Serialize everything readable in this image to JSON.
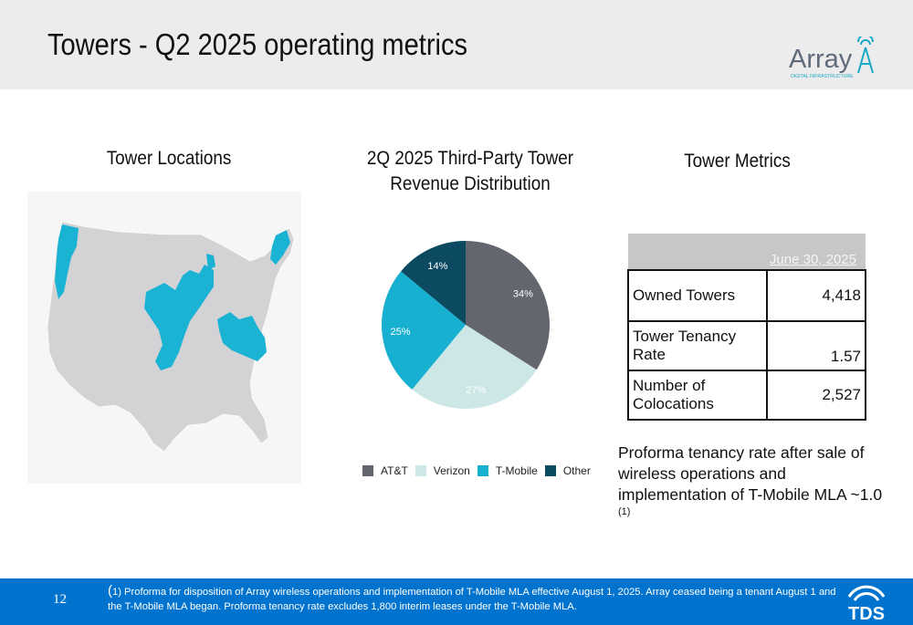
{
  "header": {
    "title": "Towers - Q2 2025 operating metrics",
    "logo_text": "Array",
    "logo_subtext": "DIGITAL INFRASTRUCTURE"
  },
  "map_section": {
    "title": "Tower Locations"
  },
  "chart_data": {
    "type": "pie",
    "title": "2Q 2025 Third-Party Tower Revenue Distribution",
    "categories": [
      "AT&T",
      "Verizon",
      "T-Mobile",
      "Other"
    ],
    "values": [
      34,
      27,
      25,
      14
    ],
    "labels": [
      "34%",
      "27%",
      "25%",
      "14%"
    ],
    "colors": [
      "#63666f",
      "#cde6e6",
      "#17b0d0",
      "#0b4a60"
    ],
    "label_colors": [
      "#ffffff",
      "#ffffff",
      "#ffffff",
      "#ffffff"
    ],
    "legend_position": "bottom"
  },
  "metrics": {
    "title": "Tower Metrics",
    "column_header": "June 30, 2025",
    "rows": [
      {
        "label": "Owned Towers",
        "value": "4,418"
      },
      {
        "label": "Tower Tenancy Rate",
        "value": "1.57"
      },
      {
        "label": "Number of Colocations",
        "value": "2,527"
      }
    ]
  },
  "proforma": {
    "text": "Proforma tenancy rate after sale of wireless operations and implementation of T-Mobile MLA ~1.0",
    "note_ref": "(1)"
  },
  "footer": {
    "page_number": "12",
    "footnote_paren": "(",
    "footnote": "1) Proforma for disposition of Array wireless operations and implementation of T-Mobile MLA effective August 1, 2025.  Array ceased being a tenant August 1 and the T-Mobile MLA began.  Proforma tenancy rate excludes 1,800 interim leases under the T-Mobile MLA.",
    "logo_text": "TDS"
  }
}
